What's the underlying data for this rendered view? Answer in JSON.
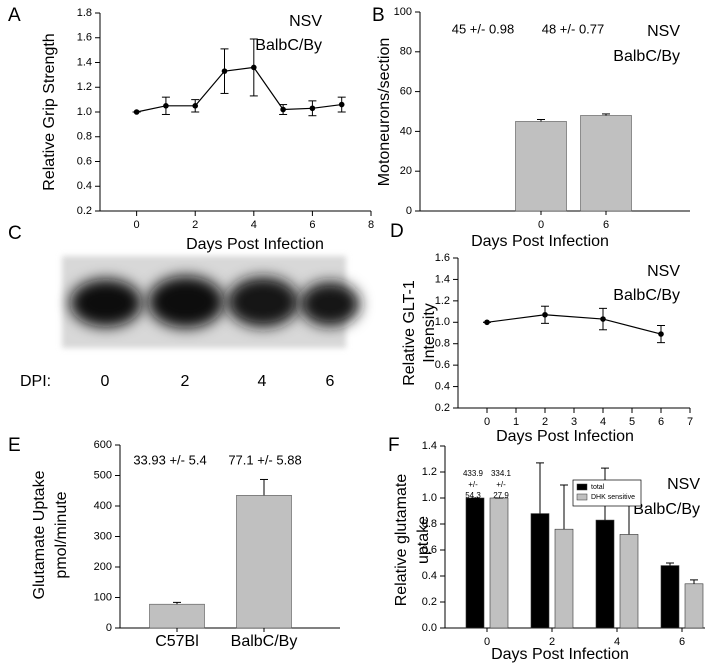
{
  "chart_data": [
    {
      "type": "line",
      "panel": "A",
      "annotations": [
        "NSV",
        "BalbC/By"
      ],
      "y_label": [
        "Relative Grip Strength"
      ],
      "x_label": "Days Post Infection",
      "x": [
        0,
        1,
        2,
        3,
        4,
        5,
        6,
        7
      ],
      "values": [
        1.0,
        1.05,
        1.05,
        1.33,
        1.36,
        1.02,
        1.03,
        1.06
      ],
      "errors": [
        0,
        0.07,
        0.05,
        0.18,
        0.23,
        0.04,
        0.06,
        0.06
      ],
      "color": "#000000",
      "xlim": [
        -1.25,
        8
      ],
      "xticks": [
        0,
        2,
        4,
        6,
        8
      ],
      "ylim": [
        0.2,
        1.8
      ],
      "yticks": [
        0.2,
        0.4,
        0.6,
        0.8,
        {
          "value": 1,
          "label": "1.0"
        },
        1.2,
        1.4,
        1.6,
        1.8
      ]
    },
    {
      "type": "bar",
      "panel": "B",
      "annotations": [
        "NSV",
        "BalbC/By"
      ],
      "y_label": [
        "Motoneurons/section"
      ],
      "x_label": "Days Post Infection",
      "categories": [
        "0",
        "6"
      ],
      "values": [
        45,
        48
      ],
      "errors": [
        0.98,
        0.77
      ],
      "value_labels": [
        "45 +/- 0.98",
        "48 +/- 0.77"
      ],
      "color": "#c0c0c0",
      "ylim": [
        0,
        100
      ],
      "yticks": [
        0,
        20,
        40,
        60,
        80,
        100
      ]
    },
    {
      "type": "line",
      "panel": "D",
      "annotations": [
        "NSV",
        "BalbC/By"
      ],
      "y_label": [
        "Relative GLT-1",
        "Intensity"
      ],
      "x_label": "Days Post Infection",
      "x": [
        0,
        2,
        4,
        6
      ],
      "values": [
        1.0,
        1.07,
        1.03,
        0.89
      ],
      "errors": [
        0,
        0.08,
        0.1,
        0.08
      ],
      "color": "#000000",
      "xlim": [
        -1,
        7
      ],
      "xticks": [
        0,
        1,
        2,
        3,
        4,
        5,
        6,
        7
      ],
      "ylim": [
        0.2,
        1.6
      ],
      "yticks": [
        0.2,
        0.4,
        0.6,
        0.8,
        {
          "value": 1,
          "label": "1.0"
        },
        1.2,
        1.4,
        1.6
      ]
    },
    {
      "type": "bar",
      "panel": "E",
      "y_label": [
        "Glutamate Uptake",
        "pmol/minute"
      ],
      "notes": [
        "33.93 +/- 5.4",
        "77.1 +/- 5.88"
      ],
      "categories": [
        "C57Bl",
        "BalbC/By"
      ],
      "values": [
        78,
        435
      ],
      "errors": [
        6,
        52
      ],
      "color": "#c0c0c0",
      "ylim": [
        0,
        600
      ],
      "yticks": [
        0,
        100,
        200,
        300,
        400,
        500,
        600
      ]
    },
    {
      "type": "grouped_bar",
      "panel": "F",
      "annotations": [
        "NSV",
        "BalbC/By"
      ],
      "y_label": [
        "Relative glutamate",
        "uptake"
      ],
      "x_label": "Days Post Infection",
      "notes": [
        [
          "433.9",
          "+/-",
          "54.3"
        ],
        [
          "334.1",
          "+/-",
          "27.9"
        ]
      ],
      "categories": [
        "0",
        "2",
        "4",
        "6"
      ],
      "series": [
        {
          "name": "total",
          "color": "#000000",
          "values": [
            1.0,
            0.88,
            0.83,
            0.48
          ],
          "errors": [
            0,
            0.39,
            0.4,
            0.02
          ]
        },
        {
          "name": "DHK sensitive",
          "color": "#c0c0c0",
          "values": [
            1.0,
            0.76,
            0.72,
            0.34
          ],
          "errors": [
            0,
            0.34,
            0.36,
            0.03
          ]
        }
      ],
      "legend": "upper right",
      "ylim": [
        0,
        1.4
      ],
      "yticks": [
        {
          "value": 0,
          "label": "0.0"
        },
        0.2,
        0.4,
        0.6,
        0.8,
        {
          "value": 1,
          "label": "1.0"
        },
        1.2,
        1.4
      ]
    }
  ],
  "blot": {
    "panel": "C",
    "label": "DPI:",
    "lanes": [
      "0",
      "2",
      "4",
      "6"
    ]
  }
}
